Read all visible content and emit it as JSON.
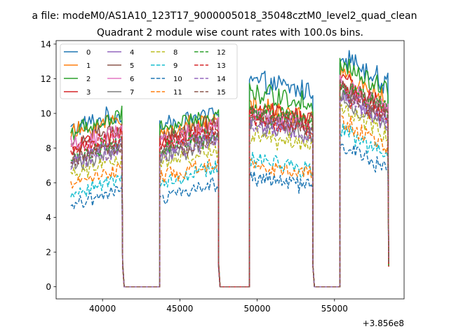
{
  "figure": {
    "suptitle": "a file: modeM0/AS1A10_123T17_9000005018_35048cztM0_level2_quad_clean",
    "axes_title": "Quadrant 2 module wise count rates with 100.0s bins.",
    "x_offset_label": "+3.856e8"
  },
  "chart_data": {
    "type": "line",
    "title": "Quadrant 2 module wise count rates with 100.0s bins.",
    "xlabel": "",
    "ylabel": "",
    "x_offset": 385600000,
    "xlim": [
      37000,
      59500
    ],
    "ylim": [
      -0.7,
      14.2
    ],
    "xticks": [
      40000,
      45000,
      50000,
      55000
    ],
    "xtick_labels": [
      "40000",
      "45000",
      "50000",
      "55000"
    ],
    "yticks": [
      0,
      2,
      4,
      6,
      8,
      10,
      12,
      14
    ],
    "ytick_labels": [
      "0",
      "2",
      "4",
      "6",
      "8",
      "10",
      "12",
      "14"
    ],
    "grid": false,
    "legend_position": "top-left",
    "bin_seconds": 100,
    "segments": [
      {
        "start": 37950,
        "end": 41250,
        "tail": 41300
      },
      {
        "start": 43700,
        "end": 47450,
        "tail": 47500
      },
      {
        "start": 49500,
        "end": 53550,
        "tail": 53600
      },
      {
        "start": 55350,
        "end": 58450,
        "tail": 58500
      }
    ],
    "gaps": [
      {
        "start": 41400,
        "end": 43700
      },
      {
        "start": 47600,
        "end": 49500
      },
      {
        "start": 53700,
        "end": 55350
      }
    ],
    "series": [
      {
        "name": "0",
        "color": "#1f77b4",
        "dash": "solid",
        "levels": [
          9.6,
          9.7,
          11.5,
          12.5
        ]
      },
      {
        "name": "1",
        "color": "#ff7f0e",
        "dash": "solid",
        "levels": [
          9.3,
          9.4,
          10.0,
          11.3
        ]
      },
      {
        "name": "2",
        "color": "#2ca02c",
        "dash": "solid",
        "levels": [
          9.4,
          9.6,
          10.9,
          11.9
        ]
      },
      {
        "name": "3",
        "color": "#d62728",
        "dash": "solid",
        "levels": [
          8.4,
          8.8,
          9.9,
          11.0
        ]
      },
      {
        "name": "4",
        "color": "#9467bd",
        "dash": "solid",
        "levels": [
          7.8,
          8.3,
          9.4,
          10.4
        ]
      },
      {
        "name": "5",
        "color": "#8c564b",
        "dash": "solid",
        "levels": [
          8.7,
          9.0,
          9.7,
          10.7
        ]
      },
      {
        "name": "6",
        "color": "#e377c2",
        "dash": "solid",
        "levels": [
          8.6,
          8.9,
          9.5,
          10.8
        ]
      },
      {
        "name": "7",
        "color": "#7f7f7f",
        "dash": "solid",
        "levels": [
          7.5,
          8.0,
          9.0,
          10.0
        ]
      },
      {
        "name": "8",
        "color": "#bcbd22",
        "dash": "dashed",
        "levels": [
          7.0,
          7.5,
          8.4,
          9.4
        ]
      },
      {
        "name": "9",
        "color": "#17becf",
        "dash": "dashed",
        "levels": [
          5.9,
          6.5,
          7.0,
          8.2
        ]
      },
      {
        "name": "10",
        "color": "#1f77b4",
        "dash": "dashed",
        "levels": [
          5.2,
          5.6,
          6.0,
          7.4
        ]
      },
      {
        "name": "11",
        "color": "#ff7f0e",
        "dash": "dashed",
        "levels": [
          6.4,
          6.8,
          6.7,
          8.7
        ]
      },
      {
        "name": "12",
        "color": "#2ca02c",
        "dash": "dashed",
        "levels": [
          8.0,
          8.4,
          9.8,
          10.9
        ]
      },
      {
        "name": "13",
        "color": "#d62728",
        "dash": "dashed",
        "levels": [
          8.3,
          8.7,
          9.3,
          10.4
        ]
      },
      {
        "name": "14",
        "color": "#9467bd",
        "dash": "dashed",
        "levels": [
          7.6,
          8.1,
          9.0,
          10.2
        ]
      },
      {
        "name": "15",
        "color": "#8c564b",
        "dash": "dashed",
        "levels": [
          7.8,
          8.2,
          9.4,
          10.6
        ]
      }
    ]
  }
}
